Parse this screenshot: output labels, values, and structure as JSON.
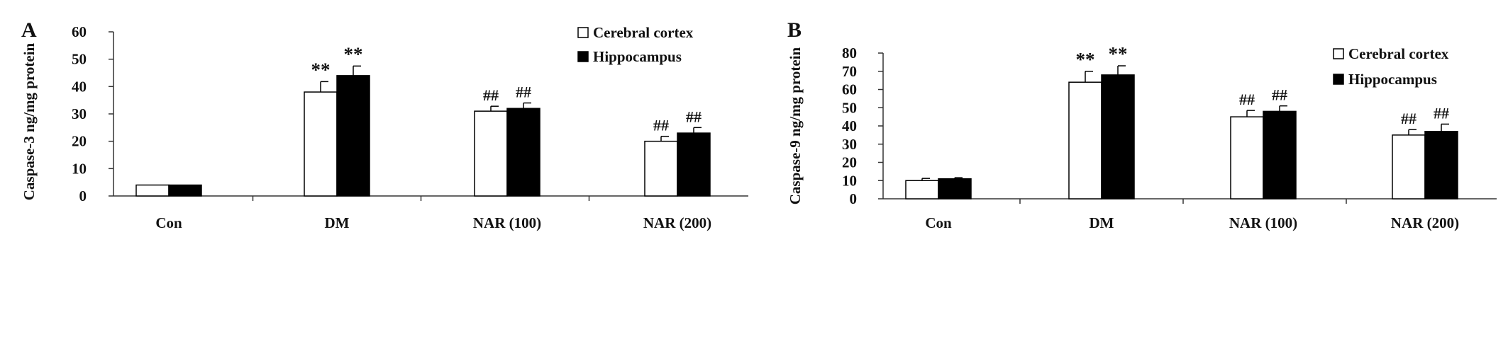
{
  "chart_data": [
    {
      "type": "bar",
      "panel_label": "A",
      "ylabel": "Caspase-3 ng/mg protein",
      "xlabel": "",
      "ylim": [
        0,
        60
      ],
      "yticks": [
        "0",
        "10",
        "20",
        "30",
        "40",
        "50",
        "60"
      ],
      "categories": [
        "Con",
        "DM",
        "NAR (100)",
        "NAR (200)"
      ],
      "legend_position": "top-right",
      "series": [
        {
          "name": "Cerebral cortex",
          "color": "#ffffff",
          "values": [
            4,
            38,
            31,
            20
          ],
          "errors": [
            0,
            3.8,
            1.8,
            1.8
          ],
          "annotations": [
            "",
            "**",
            "##",
            "##"
          ]
        },
        {
          "name": "Hippocampus",
          "color": "#000000",
          "values": [
            4,
            44,
            32,
            23
          ],
          "errors": [
            0,
            3.5,
            2,
            2
          ],
          "annotations": [
            "",
            "**",
            "##",
            "##"
          ]
        }
      ]
    },
    {
      "type": "bar",
      "panel_label": "B",
      "ylabel": "Caspase-9 ng/mg protein",
      "xlabel": "",
      "ylim": [
        0,
        80
      ],
      "yticks": [
        "0",
        "10",
        "20",
        "30",
        "40",
        "50",
        "60",
        "70",
        "80"
      ],
      "categories": [
        "Con",
        "DM",
        "NAR (100)",
        "NAR (200)"
      ],
      "legend_position": "top-right",
      "series": [
        {
          "name": "Cerebral cortex",
          "color": "#ffffff",
          "values": [
            10,
            64,
            45,
            35
          ],
          "errors": [
            1.2,
            6,
            3.5,
            3
          ],
          "annotations": [
            "",
            "**",
            "##",
            "##"
          ]
        },
        {
          "name": "Hippocampus",
          "color": "#000000",
          "values": [
            11,
            68,
            48,
            37
          ],
          "errors": [
            0.6,
            5,
            3,
            4
          ],
          "annotations": [
            "",
            "**",
            "##",
            "##"
          ]
        }
      ]
    }
  ]
}
